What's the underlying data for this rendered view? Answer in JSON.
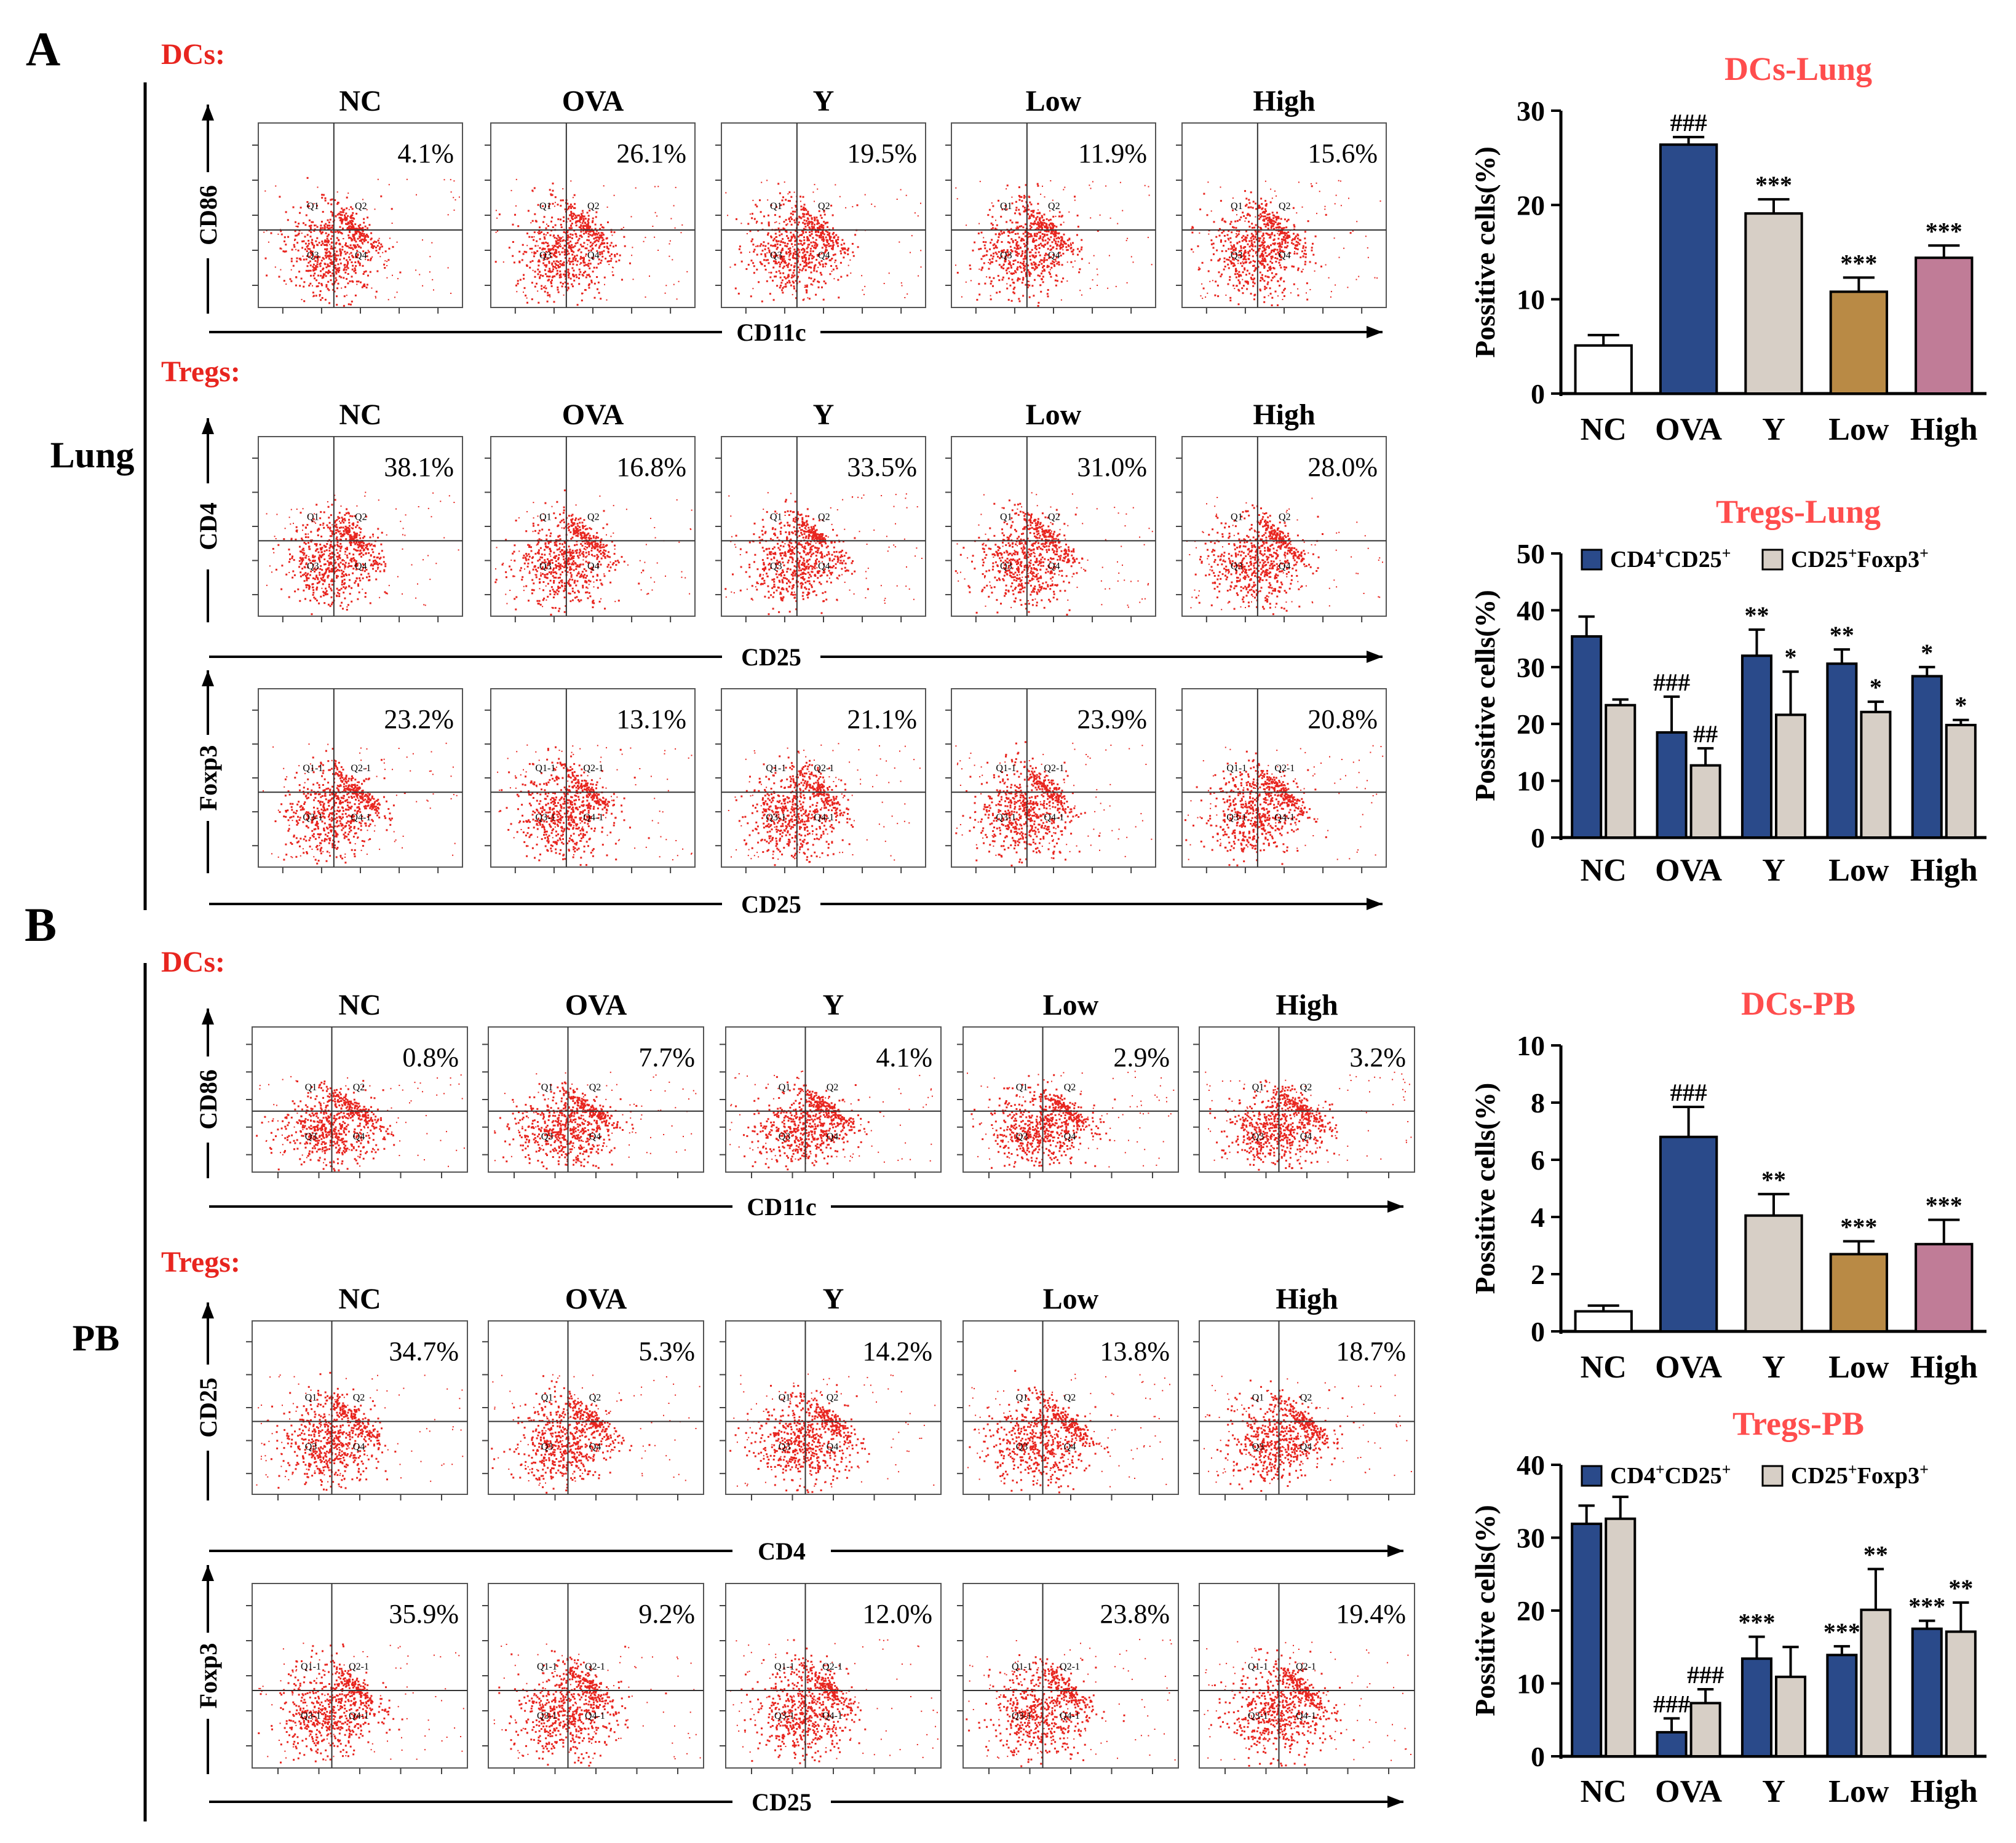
{
  "colors": {
    "red": "#e8251f",
    "navy": "#2a4a8a",
    "beige": "#d7cfc6",
    "gold": "#b98a45",
    "pink": "#c07c97",
    "white": "#ffffff",
    "black": "#000000",
    "title_red": "#ff4d4d"
  },
  "panel_labels": [
    "A",
    "B"
  ],
  "groups": [
    "NC",
    "OVA",
    "Y",
    "Low",
    "High"
  ],
  "sections": [
    {
      "side_label": "Lung",
      "rows": [
        {
          "type_label": "DCs:",
          "y_axis": "CD86",
          "x_axis": "CD11c",
          "percents": [
            "4.1%",
            "26.1%",
            "19.5%",
            "11.9%",
            "15.6%"
          ],
          "quadrants": [
            "Q1",
            "Q2",
            "Q3",
            "Q4"
          ]
        },
        {
          "type_label": "Tregs:",
          "y_axis": "CD4",
          "x_axis": "CD25",
          "percents": [
            "38.1%",
            "16.8%",
            "33.5%",
            "31.0%",
            "28.0%"
          ],
          "quadrants": [
            "Q1",
            "Q2",
            "Q3",
            "Q4"
          ]
        },
        {
          "type_label": "",
          "y_axis": "Foxp3",
          "x_axis": "CD25",
          "percents": [
            "23.2%",
            "13.1%",
            "21.1%",
            "23.9%",
            "20.8%"
          ],
          "quadrants": [
            "Q1-1",
            "Q2-1",
            "Q3-1",
            "Q4-1"
          ]
        }
      ]
    },
    {
      "side_label": "PB",
      "rows": [
        {
          "type_label": "DCs:",
          "y_axis": "CD86",
          "x_axis": "CD11c",
          "percents": [
            "0.8%",
            "7.7%",
            "4.1%",
            "2.9%",
            "3.2%"
          ],
          "quadrants": [
            "Q1",
            "Q2",
            "Q3",
            "Q4"
          ]
        },
        {
          "type_label": "Tregs:",
          "y_axis": "CD25",
          "x_axis": "CD4",
          "percents": [
            "34.7%",
            "5.3%",
            "14.2%",
            "13.8%",
            "18.7%"
          ],
          "quadrants": [
            "Q1",
            "Q2",
            "Q3",
            "Q4"
          ]
        },
        {
          "type_label": "",
          "y_axis": "Foxp3",
          "x_axis": "CD25",
          "percents": [
            "35.9%",
            "9.2%",
            "12.0%",
            "23.8%",
            "19.4%"
          ],
          "quadrants": [
            "Q1-1",
            "Q2-1",
            "Q3-1",
            "Q4-1"
          ]
        }
      ]
    }
  ],
  "chart_data": [
    {
      "type": "bar",
      "title": "DCs-Lung",
      "ylabel": "Possitive cells(%)",
      "categories": [
        "NC",
        "OVA",
        "Y",
        "Low",
        "High"
      ],
      "ylim": [
        0,
        30
      ],
      "yticks": [
        "0",
        "10",
        "20",
        "30"
      ],
      "series": [
        {
          "name": "",
          "values": [
            5.1,
            26.4,
            19.1,
            10.8,
            14.4
          ],
          "errors": [
            1.1,
            0.8,
            1.5,
            1.5,
            1.3
          ],
          "labels": [
            "",
            "###",
            "***",
            "***",
            "***"
          ]
        }
      ]
    },
    {
      "type": "bar",
      "title": "Tregs-Lung",
      "ylabel": "Possitive cells(%)",
      "categories": [
        "NC",
        "OVA",
        "Y",
        "Low",
        "High"
      ],
      "ylim": [
        0,
        50
      ],
      "yticks": [
        "0",
        "10",
        "20",
        "30",
        "40",
        "50"
      ],
      "legend": {
        "items": [
          "CD4",
          "CD25",
          "Foxp3"
        ],
        "sup": "+"
      },
      "series": [
        {
          "name": "CD4+CD25+",
          "values": [
            35.4,
            18.5,
            32.0,
            30.6,
            28.4
          ],
          "errors": [
            3.5,
            6.3,
            4.6,
            2.5,
            1.6
          ],
          "labels": [
            "",
            "###",
            "**",
            "**",
            "*"
          ]
        },
        {
          "name": "CD25+Foxp3+",
          "values": [
            23.3,
            12.7,
            21.6,
            22.1,
            19.8
          ],
          "errors": [
            1.0,
            3.0,
            7.6,
            1.8,
            0.9
          ],
          "labels": [
            "",
            "##",
            "*",
            "*",
            "*"
          ]
        }
      ]
    },
    {
      "type": "bar",
      "title": "DCs-PB",
      "ylabel": "Possitive cells(%)",
      "categories": [
        "NC",
        "OVA",
        "Y",
        "Low",
        "High"
      ],
      "ylim": [
        0,
        10
      ],
      "yticks": [
        "0",
        "2",
        "4",
        "6",
        "8",
        "10"
      ],
      "series": [
        {
          "name": "",
          "values": [
            0.7,
            6.8,
            4.05,
            2.7,
            3.05
          ],
          "errors": [
            0.2,
            1.05,
            0.75,
            0.45,
            0.85
          ],
          "labels": [
            "",
            "###",
            "**",
            "***",
            "***"
          ]
        }
      ]
    },
    {
      "type": "bar",
      "title": "Tregs-PB",
      "ylabel": "Possitive cells(%)",
      "categories": [
        "NC",
        "OVA",
        "Y",
        "Low",
        "High"
      ],
      "ylim": [
        0,
        40
      ],
      "yticks": [
        "0",
        "10",
        "20",
        "30",
        "40"
      ],
      "legend": {
        "items": [
          "CD4",
          "CD25",
          "Foxp3"
        ],
        "sup": "+"
      },
      "series": [
        {
          "name": "CD4+CD25+",
          "values": [
            31.9,
            3.3,
            13.4,
            13.9,
            17.5
          ],
          "errors": [
            2.5,
            1.9,
            3.0,
            1.2,
            1.1
          ],
          "labels": [
            "",
            "###",
            "***",
            "***",
            "***"
          ]
        },
        {
          "name": "CD25+Foxp3+",
          "values": [
            32.6,
            7.3,
            10.9,
            20.1,
            17.1
          ],
          "errors": [
            3.0,
            1.9,
            4.1,
            5.6,
            4.0
          ],
          "labels": [
            "",
            "###",
            "",
            "**",
            "**"
          ]
        }
      ]
    }
  ]
}
